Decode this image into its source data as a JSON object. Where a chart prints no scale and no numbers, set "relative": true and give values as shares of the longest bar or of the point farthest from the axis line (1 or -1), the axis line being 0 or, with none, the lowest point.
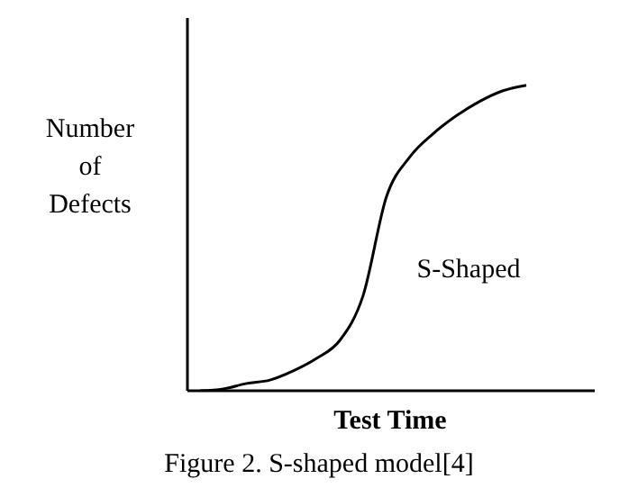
{
  "chart_data": {
    "type": "line",
    "relative": true,
    "xlabel": "Test Time",
    "ylabel": "Number of Defects",
    "categories": [
      null,
      null,
      null,
      null,
      null,
      null,
      null,
      null,
      null,
      null,
      null,
      null,
      null,
      null,
      null
    ],
    "series": [
      {
        "color": "#000000",
        "values": [
          0,
          0.006,
          0.024,
          0.035,
          0.065,
          0.106,
          0.165,
          0.312,
          0.635,
          0.765,
          0.841,
          0.9,
          0.947,
          0.982,
          1
        ]
      }
    ],
    "annotations": [
      "S-Shaped",
      "Figure 2. S-shaped model[4]"
    ],
    "marker": "none",
    "grid": false,
    "legend": false
  }
}
